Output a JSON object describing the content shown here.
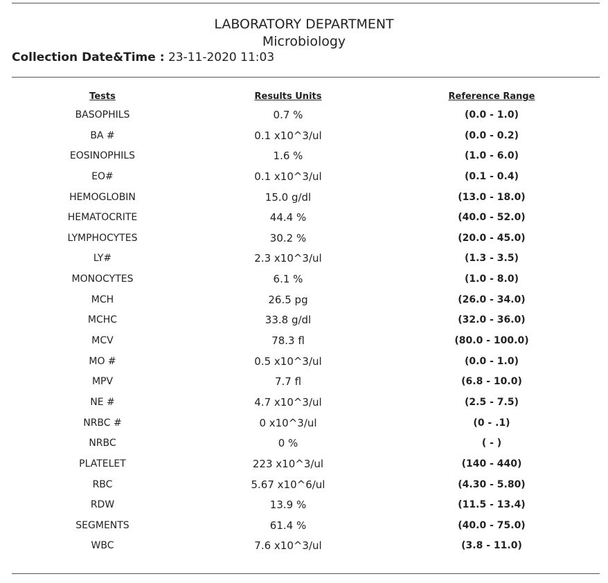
{
  "header": {
    "department": "LABORATORY DEPARTMENT",
    "section": "Microbiology",
    "collection_label": "Collection Date&Time :",
    "collection_value": "23-11-2020 11:03"
  },
  "columns": {
    "tests": "Tests",
    "results": "Results Units",
    "reference": "Reference Range"
  },
  "rows": [
    {
      "test": "BASOPHILS",
      "result": "0.7 %",
      "range": "(0.0 - 1.0)"
    },
    {
      "test": "BA #",
      "result": "0.1 x10^3/ul",
      "range": "(0.0 - 0.2)"
    },
    {
      "test": "EOSINOPHILS",
      "result": "1.6 %",
      "range": "(1.0 - 6.0)"
    },
    {
      "test": "EO#",
      "result": "0.1 x10^3/ul",
      "range": "(0.1 - 0.4)"
    },
    {
      "test": "HEMOGLOBIN",
      "result": "15.0 g/dl",
      "range": "(13.0 - 18.0)"
    },
    {
      "test": "HEMATOCRITE",
      "result": "44.4 %",
      "range": "(40.0 - 52.0)"
    },
    {
      "test": "LYMPHOCYTES",
      "result": "30.2 %",
      "range": "(20.0 - 45.0)"
    },
    {
      "test": "LY#",
      "result": "2.3 x10^3/ul",
      "range": "(1.3 - 3.5)"
    },
    {
      "test": "MONOCYTES",
      "result": "6.1 %",
      "range": "(1.0 - 8.0)"
    },
    {
      "test": "MCH",
      "result": "26.5 pg",
      "range": "(26.0 - 34.0)"
    },
    {
      "test": "MCHC",
      "result": "33.8 g/dl",
      "range": "(32.0 - 36.0)"
    },
    {
      "test": "MCV",
      "result": "78.3 fl",
      "range": "(80.0 - 100.0)"
    },
    {
      "test": "MO #",
      "result": "0.5 x10^3/ul",
      "range": "(0.0 - 1.0)"
    },
    {
      "test": "MPV",
      "result": "7.7 fl",
      "range": "(6.8 - 10.0)"
    },
    {
      "test": "NE #",
      "result": "4.7 x10^3/ul",
      "range": "(2.5 - 7.5)"
    },
    {
      "test": "NRBC #",
      "result": "0 x10^3/ul",
      "range": "(0 - .1)"
    },
    {
      "test": "NRBC",
      "result": "0 %",
      "range": "( - )"
    },
    {
      "test": "PLATELET",
      "result": "223 x10^3/ul",
      "range": "(140 - 440)"
    },
    {
      "test": "RBC",
      "result": "5.67 x10^6/ul",
      "range": "(4.30 - 5.80)"
    },
    {
      "test": "RDW",
      "result": "13.9 %",
      "range": "(11.5 - 13.4)"
    },
    {
      "test": "SEGMENTS",
      "result": "61.4 %",
      "range": "(40.0 - 75.0)"
    },
    {
      "test": "WBC",
      "result": "7.6 x10^3/ul",
      "range": "(3.8 - 11.0)"
    }
  ]
}
